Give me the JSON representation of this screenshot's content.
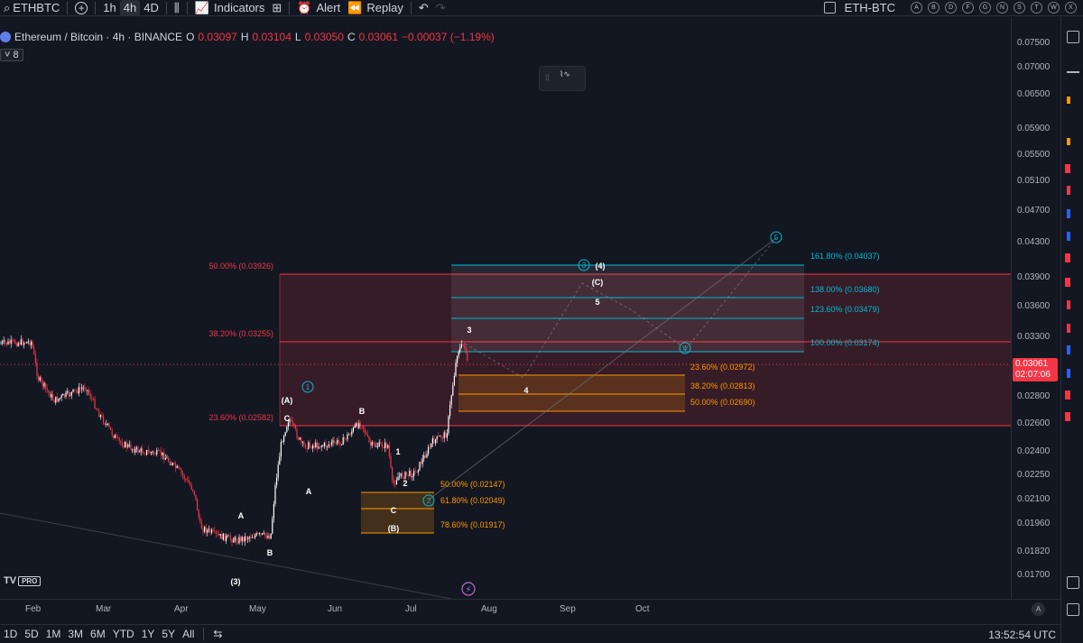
{
  "topbar": {
    "symbol": "ETHBTC",
    "intervals": [
      "1h",
      "4h",
      "4D"
    ],
    "active_interval": "4h",
    "indicators_label": "Indicators",
    "alert_label": "Alert",
    "replay_label": "Replay",
    "compare_symbol": "ETH-BTC",
    "quick_buttons": [
      "A",
      "B",
      "D",
      "F",
      "G",
      "N",
      "S",
      "T",
      "W",
      "X"
    ]
  },
  "legend": {
    "title": "Ethereum / Bitcoin · 4h · BINANCE",
    "o_label": "O",
    "o_value": "0.03097",
    "h_label": "H",
    "h_value": "0.03104",
    "l_label": "L",
    "l_value": "0.03050",
    "c_label": "C",
    "c_value": "0.03061",
    "change": "−0.00037 (−1.19%)",
    "indicator_count": "8"
  },
  "colors": {
    "background": "#131722",
    "fib_red": "#f23645",
    "fib_blue": "#00bcd4",
    "fib_orange": "#ff9800",
    "candle_up": "#ffffff",
    "candle_down": "#f23645"
  },
  "price_axis": {
    "ticks": [
      "0.07500",
      "0.07000",
      "0.06500",
      "0.05900",
      "0.05500",
      "0.05100",
      "0.04700",
      "0.04300",
      "0.03900",
      "0.03600",
      "0.03300",
      "0.02800",
      "0.02600",
      "0.02400",
      "0.02250",
      "0.02100",
      "0.01960",
      "0.01820",
      "0.01700"
    ],
    "current_price": "0.03061",
    "countdown": "02:07:06"
  },
  "time_axis": {
    "labels": [
      "Feb",
      "Mar",
      "Apr",
      "May",
      "Jun",
      "Jul",
      "Aug",
      "Sep",
      "Oct"
    ]
  },
  "bottombar": {
    "ranges": [
      "1D",
      "5D",
      "1M",
      "3M",
      "6M",
      "YTD",
      "1Y",
      "5Y",
      "All"
    ],
    "clock": "13:52:54 UTC"
  },
  "fib_levels": {
    "red": [
      {
        "label": "50.00% (0.03926)"
      },
      {
        "label": "38.20% (0.03255)"
      },
      {
        "label": "23.60% (0.02582)"
      }
    ],
    "blue": [
      {
        "label": "161.80% (0.04037)"
      },
      {
        "label": "138.00% (0.03680)"
      },
      {
        "label": "123.60% (0.03479)"
      },
      {
        "label": "100.00% (0.03174)"
      }
    ],
    "orange_upper": [
      {
        "label": "23.60% (0.02972)"
      },
      {
        "label": "38.20% (0.02813)"
      },
      {
        "label": "50.00% (0.02690)"
      }
    ],
    "orange_lower": [
      {
        "label": "50.00% (0.02147)"
      },
      {
        "label": "61.80% (0.02049)"
      },
      {
        "label": "78.60% (0.01917)"
      }
    ]
  },
  "wave_labels": {
    "circled": [
      "1",
      "2",
      "3",
      "4",
      "5"
    ],
    "plain": [
      "(A)",
      "C",
      "A",
      "B",
      "A",
      "B",
      "C",
      "(B)",
      "(3)",
      "1",
      "2",
      "3",
      "4",
      "5",
      "(C)",
      "(4)"
    ]
  },
  "logo": {
    "text": "TV",
    "badge": "PRO"
  },
  "auto_label": "A"
}
